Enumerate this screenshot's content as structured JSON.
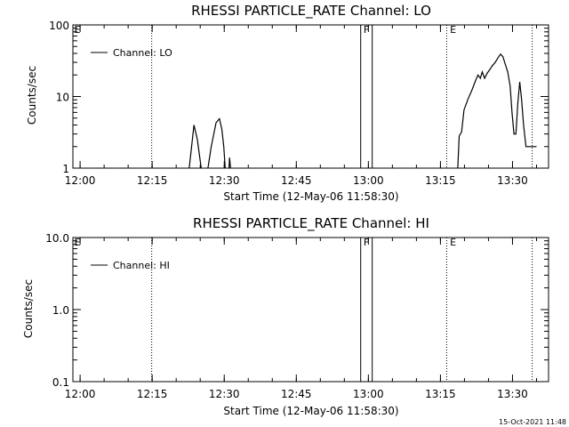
{
  "chart_data": [
    {
      "type": "line",
      "title": "RHESSI PARTICLE_RATE Channel: LO",
      "xlabel": "Start Time (12-May-06 11:58:30)",
      "ylabel": "Counts/sec",
      "yscale": "log",
      "ylim": [
        1,
        100
      ],
      "yticks": [
        "1",
        "10",
        "100"
      ],
      "ytick_values": [
        1,
        10,
        100
      ],
      "xlim_minutes": [
        0,
        99
      ],
      "xticks": [
        "12:00",
        "12:15",
        "12:30",
        "12:45",
        "13:00",
        "13:15",
        "13:30"
      ],
      "xtick_minutes": [
        1.5,
        16.5,
        31.5,
        46.5,
        61.5,
        76.5,
        91.5
      ],
      "legend": {
        "label": "Channel: LO",
        "position": "top-left"
      },
      "series": [
        {
          "name": "Channel: LO",
          "segments": [
            [
              [
                24.2,
                1.0
              ],
              [
                25.2,
                4.0
              ],
              [
                25.9,
                2.5
              ],
              [
                26.7,
                1.0
              ]
            ],
            [
              [
                28.1,
                1.0
              ],
              [
                28.8,
                2.0
              ],
              [
                29.8,
                4.3
              ],
              [
                30.5,
                4.9
              ],
              [
                31.0,
                3.5
              ],
              [
                31.4,
                2.0
              ],
              [
                31.7,
                1.0
              ]
            ],
            [
              [
                32.5,
                1.0
              ],
              [
                32.6,
                1.4
              ],
              [
                32.8,
                1.0
              ]
            ],
            [
              [
                80.1,
                1.0
              ],
              [
                80.4,
                2.8
              ],
              [
                80.9,
                3.2
              ],
              [
                81.4,
                6.5
              ],
              [
                82.3,
                9.5
              ],
              [
                83.0,
                12
              ],
              [
                83.7,
                16
              ],
              [
                84.3,
                20
              ],
              [
                84.8,
                18
              ],
              [
                85.2,
                22
              ],
              [
                85.7,
                18
              ],
              [
                86.2,
                21
              ],
              [
                86.8,
                24
              ],
              [
                87.3,
                27
              ],
              [
                87.9,
                30
              ],
              [
                88.5,
                35
              ],
              [
                89.0,
                39
              ],
              [
                89.5,
                36
              ],
              [
                90.0,
                28
              ],
              [
                90.5,
                22
              ],
              [
                91.0,
                14
              ],
              [
                91.4,
                6
              ],
              [
                91.8,
                3.0
              ],
              [
                92.2,
                3.0
              ],
              [
                92.6,
                8.0
              ],
              [
                93.0,
                16
              ],
              [
                93.4,
                9
              ],
              [
                93.8,
                4.0
              ],
              [
                94.3,
                2.0
              ],
              [
                96.5,
                2.0
              ]
            ]
          ]
        }
      ],
      "vlines_minutes": [
        16.4,
        59.9,
        62.3,
        77.8,
        95.6
      ],
      "flags": [
        {
          "label": "E",
          "minute": 0.1
        },
        {
          "label": "F",
          "minute": 60.3
        },
        {
          "label": "E",
          "minute": 78.3
        }
      ]
    },
    {
      "type": "line",
      "title": "RHESSI PARTICLE_RATE Channel: HI",
      "xlabel": "Start Time (12-May-06 11:58:30)",
      "ylabel": "Counts/sec",
      "yscale": "log",
      "ylim": [
        0.1,
        10
      ],
      "yticks": [
        "0.1",
        "1.0",
        "10.0"
      ],
      "ytick_values": [
        0.1,
        1,
        10
      ],
      "xlim_minutes": [
        0,
        99
      ],
      "xticks": [
        "12:00",
        "12:15",
        "12:30",
        "12:45",
        "13:00",
        "13:15",
        "13:30"
      ],
      "xtick_minutes": [
        1.5,
        16.5,
        31.5,
        46.5,
        61.5,
        76.5,
        91.5
      ],
      "legend": {
        "label": "Channel: HI",
        "position": "top-left"
      },
      "series": [
        {
          "name": "Channel: HI",
          "segments": []
        }
      ],
      "vlines_minutes": [
        16.4,
        59.9,
        62.3,
        77.8,
        95.6
      ],
      "flags": [
        {
          "label": "E",
          "minute": 0.1
        },
        {
          "label": "F",
          "minute": 60.3
        },
        {
          "label": "E",
          "minute": 78.3
        }
      ]
    }
  ],
  "footer": {
    "timestamp": "15-Oct-2021 11:48"
  }
}
